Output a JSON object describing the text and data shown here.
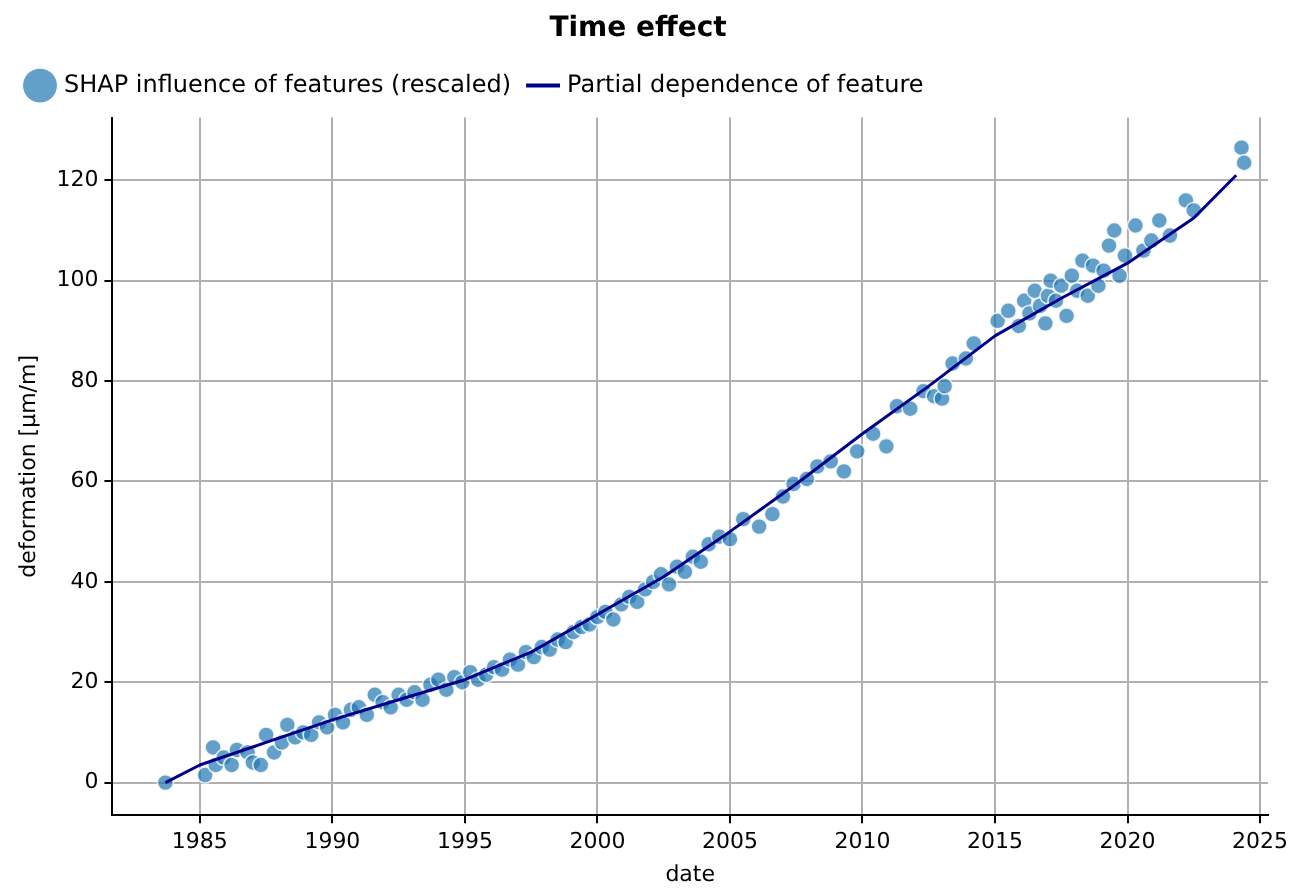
{
  "chart_data": {
    "type": "scatter",
    "title": "Time effect",
    "xlabel": "date",
    "ylabel": "deformation [µm/m]",
    "xlim": [
      1981.7,
      2025.3
    ],
    "ylim": [
      -6.5,
      132.5
    ],
    "xticks": [
      1985,
      1990,
      1995,
      2000,
      2005,
      2010,
      2015,
      2020,
      2025
    ],
    "yticks": [
      0,
      20,
      40,
      60,
      80,
      100,
      120
    ],
    "grid": true,
    "legend": "top left",
    "marker": "circle",
    "series": [
      {
        "name": "SHAP influence of features (rescaled)",
        "type": "scatter",
        "color": "#1f77b4",
        "x": [
          1983.7,
          1985.2,
          1985.5,
          1985.6,
          1985.9,
          1986.2,
          1986.4,
          1986.8,
          1987.0,
          1987.3,
          1987.5,
          1987.8,
          1988.1,
          1988.3,
          1988.6,
          1988.9,
          1989.2,
          1989.5,
          1989.8,
          1990.1,
          1990.4,
          1990.7,
          1991.0,
          1991.3,
          1991.6,
          1991.9,
          1992.2,
          1992.5,
          1992.8,
          1993.1,
          1993.4,
          1993.7,
          1994.0,
          1994.3,
          1994.6,
          1994.9,
          1995.2,
          1995.5,
          1995.8,
          1996.1,
          1996.4,
          1996.7,
          1997.0,
          1997.3,
          1997.6,
          1997.9,
          1998.2,
          1998.5,
          1998.8,
          1999.1,
          1999.4,
          1999.7,
          2000.0,
          2000.3,
          2000.6,
          2000.9,
          2001.2,
          2001.5,
          2001.8,
          2002.1,
          2002.4,
          2002.7,
          2003.0,
          2003.3,
          2003.6,
          2003.9,
          2004.2,
          2004.6,
          2005.0,
          2005.5,
          2006.1,
          2006.6,
          2007.0,
          2007.4,
          2007.9,
          2008.3,
          2008.8,
          2009.3,
          2009.8,
          2010.4,
          2010.9,
          2011.3,
          2011.8,
          2012.3,
          2012.7,
          2013.0,
          2013.1,
          2013.4,
          2013.9,
          2014.2,
          2015.1,
          2015.5,
          2015.9,
          2016.1,
          2016.3,
          2016.5,
          2016.7,
          2016.9,
          2017.0,
          2017.1,
          2017.3,
          2017.5,
          2017.7,
          2017.9,
          2018.1,
          2018.3,
          2018.5,
          2018.7,
          2018.9,
          2019.1,
          2019.3,
          2019.5,
          2019.7,
          2019.9,
          2020.3,
          2020.6,
          2020.9,
          2021.2,
          2021.6,
          2022.2,
          2022.5,
          2024.3,
          2024.4
        ],
        "values": [
          0,
          1.5,
          7,
          3.5,
          5,
          3.5,
          6.5,
          6,
          4,
          3.5,
          9.5,
          6,
          8,
          11.5,
          9,
          10,
          9.5,
          12,
          11,
          13.5,
          12,
          14.5,
          15,
          13.5,
          17.5,
          16,
          15,
          17.5,
          16.5,
          18,
          16.5,
          19.5,
          20.5,
          18.5,
          21,
          20,
          22,
          20.5,
          21.5,
          23,
          22.5,
          24.5,
          23.5,
          26,
          25,
          27,
          26.5,
          28.5,
          28,
          30,
          31,
          31.5,
          33,
          34,
          32.5,
          35.5,
          37,
          36,
          38.5,
          40,
          41.5,
          39.5,
          43,
          42,
          45,
          44,
          47.5,
          49,
          48.5,
          52.5,
          51,
          53.5,
          57,
          59.5,
          60.5,
          63,
          64,
          62,
          66,
          69.5,
          67,
          75,
          74.5,
          78,
          77,
          76.5,
          79,
          83.5,
          84.5,
          87.5,
          92,
          94,
          91,
          96,
          93.5,
          98,
          95,
          91.5,
          97,
          100,
          96,
          99,
          93,
          101,
          98,
          104,
          97,
          103,
          99,
          102,
          107,
          110,
          101,
          105,
          111,
          106,
          108,
          112,
          109,
          116,
          114,
          126.5,
          123.5
        ]
      },
      {
        "name": "Partial dependence of feature",
        "type": "line",
        "color": "#00008b",
        "marker": "none",
        "x": [
          1983.7,
          1985,
          1987.5,
          1990,
          1992.5,
          1995,
          1997.5,
          2000,
          2002.5,
          2005,
          2007.5,
          2010,
          2012.5,
          2015,
          2017.5,
          2020,
          2022.5,
          2024.1
        ],
        "values": [
          0,
          3.5,
          8,
          12.5,
          16.5,
          20.5,
          26,
          33.5,
          41,
          50,
          59.5,
          69.5,
          79,
          89,
          96.5,
          103.5,
          112.5,
          121
        ]
      }
    ]
  }
}
